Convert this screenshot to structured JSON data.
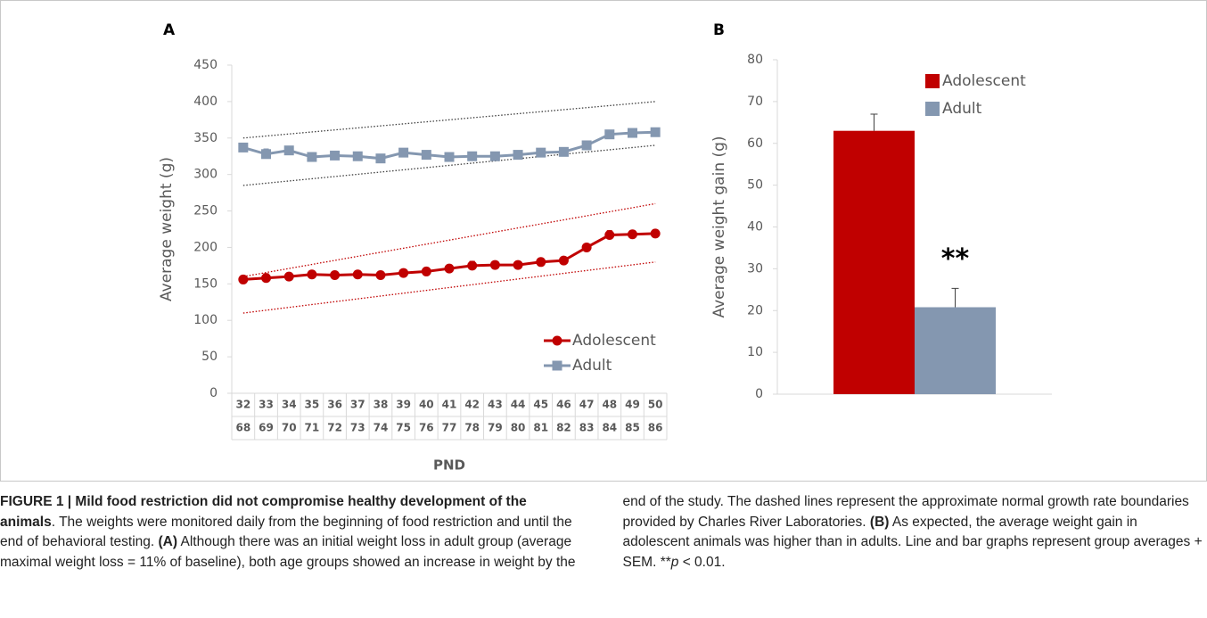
{
  "chart_data": [
    {
      "type": "line",
      "panel": "A",
      "ylabel": "Average weight (g)",
      "xlabel": "PND",
      "categories": [
        [
          32,
          68
        ],
        [
          33,
          69
        ],
        [
          34,
          70
        ],
        [
          35,
          71
        ],
        [
          36,
          72
        ],
        [
          37,
          73
        ],
        [
          38,
          74
        ],
        [
          39,
          75
        ],
        [
          40,
          76
        ],
        [
          41,
          77
        ],
        [
          42,
          78
        ],
        [
          43,
          79
        ],
        [
          44,
          80
        ],
        [
          45,
          81
        ],
        [
          46,
          82
        ],
        [
          47,
          83
        ],
        [
          48,
          84
        ],
        [
          49,
          85
        ],
        [
          50,
          86
        ]
      ],
      "ylim": [
        0,
        450
      ],
      "yticks": [
        0,
        50,
        100,
        150,
        200,
        250,
        300,
        350,
        400,
        450
      ],
      "series": [
        {
          "name": "Adolescent",
          "color": "#c00000",
          "marker": "circle",
          "values": [
            156,
            158,
            160,
            163,
            162,
            163,
            162,
            165,
            167,
            171,
            175,
            176,
            176,
            180,
            182,
            200,
            217,
            218,
            219
          ],
          "errors": [
            5,
            6,
            4,
            5,
            4,
            4,
            3,
            4,
            4,
            4,
            6,
            5,
            4,
            4,
            4,
            4,
            6,
            5,
            5
          ]
        },
        {
          "name": "Adult",
          "color": "#8497b0",
          "marker": "square",
          "values": [
            337,
            328,
            333,
            324,
            326,
            325,
            322,
            330,
            327,
            324,
            325,
            325,
            327,
            330,
            331,
            340,
            355,
            357,
            358
          ],
          "errors": [
            5,
            7,
            5,
            6,
            4,
            4,
            4,
            3,
            4,
            4,
            5,
            4,
            4,
            4,
            4,
            3,
            4,
            4,
            4
          ]
        }
      ],
      "boundaries": [
        {
          "color": "#404040",
          "values": [
            350,
            400
          ]
        },
        {
          "color": "#404040",
          "values": [
            285,
            340
          ]
        },
        {
          "color": "#c00000",
          "values": [
            160,
            260
          ]
        },
        {
          "color": "#c00000",
          "values": [
            110,
            180
          ]
        }
      ],
      "legend": "lower right"
    },
    {
      "type": "bar",
      "panel": "B",
      "ylabel": "Average weight gain (g)",
      "ylim": [
        0,
        80
      ],
      "yticks": [
        0,
        10,
        20,
        30,
        40,
        50,
        60,
        70,
        80
      ],
      "series": [
        {
          "name": "Adolescent",
          "color": "#c00000",
          "values": [
            63
          ],
          "errors": [
            4
          ]
        },
        {
          "name": "Adult",
          "color": "#8497b0",
          "values": [
            20.8
          ],
          "errors": [
            4.5
          ]
        }
      ],
      "annotation": "**",
      "legend": "upper right"
    }
  ],
  "caption": {
    "segments": [
      {
        "text": "FIGURE 1 | Mild food restriction did not compromise healthy development of the animals",
        "bold": true
      },
      {
        "text": ". The weights were monitored daily from the beginning of food restriction and until the end of behavioral testing. "
      },
      {
        "text": "(A)",
        "bold": true
      },
      {
        "text": " Although there was an initial weight loss in adult group (average maximal weight loss = 11% of baseline), both age groups showed an increase in weight by the end of the study. The dashed lines represent the approximate normal growth rate boundaries provided by Charles River Laboratories. "
      },
      {
        "text": "(B)",
        "bold": true
      },
      {
        "text": " As expected, the average weight gain in adolescent animals was higher than in adults. Line and bar graphs represent group averages + SEM. **"
      },
      {
        "text": "p",
        "italic": true
      },
      {
        "text": " < 0.01."
      }
    ]
  }
}
